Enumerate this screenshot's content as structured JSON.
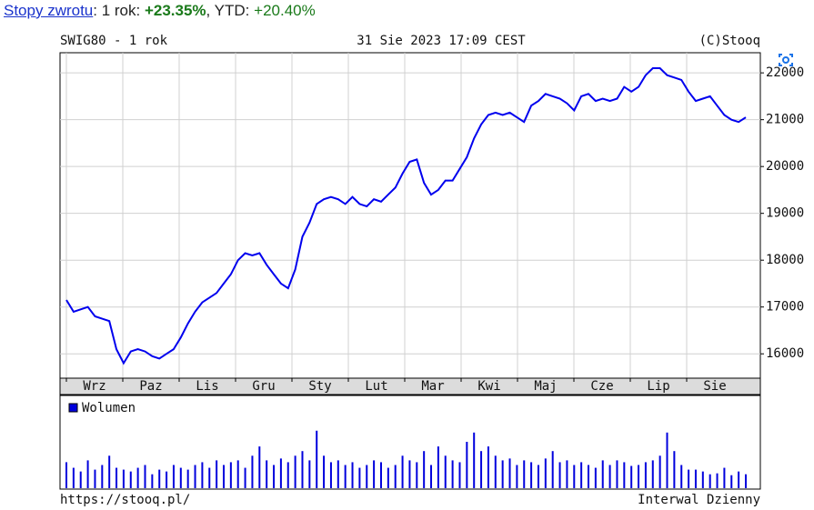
{
  "header": {
    "parts": [
      {
        "text": "Stopy zwrotu",
        "style": "link"
      },
      {
        "text": ": 1 rok: ",
        "style": "plain"
      },
      {
        "text": "+23.35%",
        "style": "bold"
      },
      {
        "text": ", YTD: ",
        "style": "plain"
      },
      {
        "text": "+20.40%",
        "style": "val"
      }
    ]
  },
  "chart_data": {
    "type": "line",
    "title": "SWIG80 - 1 rok",
    "subtitle": "31 Sie 2023 17:09 CEST",
    "credit": "(C)Stooq",
    "color": "#0000ee",
    "months": [
      "Wrz",
      "Paz",
      "Lis",
      "Gru",
      "Sty",
      "Lut",
      "Mar",
      "Kwi",
      "Maj",
      "Cze",
      "Lip",
      "Sie"
    ],
    "values": [
      17150,
      16900,
      16950,
      17000,
      16800,
      16750,
      16700,
      16100,
      15800,
      16050,
      16100,
      16050,
      15950,
      15900,
      16000,
      16100,
      16350,
      16650,
      16900,
      17100,
      17200,
      17300,
      17500,
      17700,
      18000,
      18150,
      18100,
      18150,
      17900,
      17700,
      17500,
      17400,
      17800,
      18500,
      18800,
      19200,
      19300,
      19350,
      19300,
      19200,
      19350,
      19200,
      19150,
      19300,
      19250,
      19400,
      19550,
      19850,
      20100,
      20150,
      19650,
      19400,
      19500,
      19700,
      19700,
      19950,
      20200,
      20600,
      20900,
      21100,
      21150,
      21100,
      21150,
      21050,
      20950,
      21300,
      21400,
      21550,
      21500,
      21450,
      21350,
      21200,
      21500,
      21550,
      21400,
      21450,
      21400,
      21450,
      21700,
      21600,
      21700,
      21950,
      22100,
      22100,
      21950,
      21900,
      21850,
      21600,
      21400,
      21450,
      21500,
      21300,
      21100,
      21000,
      20950,
      21050
    ],
    "ylim": [
      15480,
      22430
    ],
    "yticks": [
      16000,
      17000,
      18000,
      19000,
      20000,
      21000,
      22000
    ],
    "grid": true,
    "volume": {
      "name": "Wolumen",
      "color": "#0000dd",
      "ylim": [
        0,
        100
      ],
      "values": [
        28,
        22,
        18,
        30,
        20,
        25,
        35,
        22,
        20,
        18,
        22,
        25,
        15,
        20,
        18,
        25,
        22,
        20,
        25,
        28,
        22,
        30,
        25,
        28,
        30,
        22,
        35,
        45,
        30,
        25,
        32,
        28,
        35,
        40,
        30,
        62,
        35,
        28,
        30,
        25,
        28,
        22,
        25,
        30,
        28,
        22,
        25,
        35,
        30,
        28,
        40,
        25,
        45,
        35,
        30,
        28,
        50,
        60,
        40,
        45,
        35,
        30,
        32,
        25,
        30,
        28,
        25,
        32,
        40,
        28,
        30,
        25,
        28,
        25,
        22,
        30,
        25,
        30,
        28,
        24,
        25,
        28,
        30,
        35,
        60,
        40,
        25,
        20,
        20,
        18,
        15,
        16,
        22,
        14,
        18,
        15
      ]
    }
  },
  "footer": {
    "left": "https://stooq.pl/",
    "right": "Interwal Dzienny"
  }
}
